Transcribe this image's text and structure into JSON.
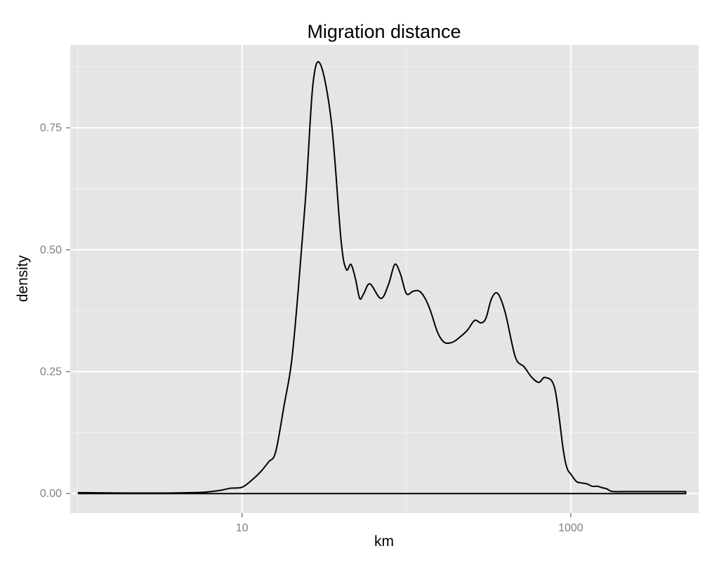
{
  "chart_data": {
    "type": "area",
    "title": "Migration distance",
    "xlabel": "km",
    "ylabel": "density",
    "x_scale": "log10",
    "xlim": [
      0.9,
      6000
    ],
    "ylim": [
      -0.04,
      0.92
    ],
    "x_ticks": [
      10,
      1000
    ],
    "x_tick_labels": [
      "10",
      "1000"
    ],
    "x_minor_ticks": [
      1,
      100
    ],
    "y_ticks": [
      0,
      0.25,
      0.5,
      0.75
    ],
    "y_tick_labels": [
      "0.00",
      "0.25",
      "0.50",
      "0.75"
    ],
    "y_minor_ticks": [
      0.125,
      0.375,
      0.625,
      0.875
    ],
    "grid": true,
    "legend": "none",
    "colors": {
      "panel": "#e5e5e5",
      "grid": "#ffffff",
      "line": "#000000",
      "tick_text": "#7f7f7f"
    },
    "series": [
      {
        "x": [
          1.0,
          2.0,
          3.5,
          5.0,
          6.0,
          7.5,
          8.5,
          10.0,
          11.5,
          13.0,
          14.5,
          16.0,
          18.0,
          20.0,
          22.0,
          24.5,
          27.0,
          30.0,
          35.0,
          40.0,
          43.0,
          46.0,
          49.0,
          52.0,
          55.0,
          60.0,
          70.0,
          78.0,
          85.0,
          92.0,
          100.0,
          110.0,
          120.0,
          130.0,
          140.0,
          155.0,
          170.0,
          190.0,
          210.0,
          235.0,
          260.0,
          285.0,
          305.0,
          330.0,
          360.0,
          400.0,
          460.0,
          520.0,
          580.0,
          640.0,
          700.0,
          800.0,
          900.0,
          950.0,
          1000.0,
          1080.0,
          1150.0,
          1250.0,
          1350.0,
          1450.0,
          1550.0,
          1650.0,
          1750.0,
          1850.0,
          2050.0,
          2300.0,
          2550.0,
          2800.0,
          3000.0,
          3200.0,
          3400.0,
          3650.0,
          3900.0,
          4200.0,
          4500.0,
          4700.0,
          4900.0,
          5000.0,
          5000.0,
          1.0
        ],
        "y": [
          0.002,
          0.001,
          0.001,
          0.002,
          0.003,
          0.007,
          0.011,
          0.013,
          0.028,
          0.045,
          0.065,
          0.085,
          0.18,
          0.27,
          0.42,
          0.62,
          0.84,
          0.88,
          0.76,
          0.52,
          0.46,
          0.47,
          0.44,
          0.4,
          0.41,
          0.43,
          0.4,
          0.43,
          0.47,
          0.45,
          0.41,
          0.415,
          0.415,
          0.4,
          0.375,
          0.33,
          0.31,
          0.31,
          0.32,
          0.335,
          0.355,
          0.35,
          0.36,
          0.4,
          0.41,
          0.37,
          0.28,
          0.26,
          0.238,
          0.228,
          0.238,
          0.215,
          0.09,
          0.052,
          0.04,
          0.025,
          0.022,
          0.02,
          0.015,
          0.015,
          0.012,
          0.01,
          0.005,
          0.004,
          0.004,
          0.004,
          0.004,
          0.004,
          0.004,
          0.004,
          0.004,
          0.004,
          0.004,
          0.004,
          0.004,
          0.004,
          0.004,
          0.004,
          0.0,
          0.0
        ]
      }
    ]
  }
}
